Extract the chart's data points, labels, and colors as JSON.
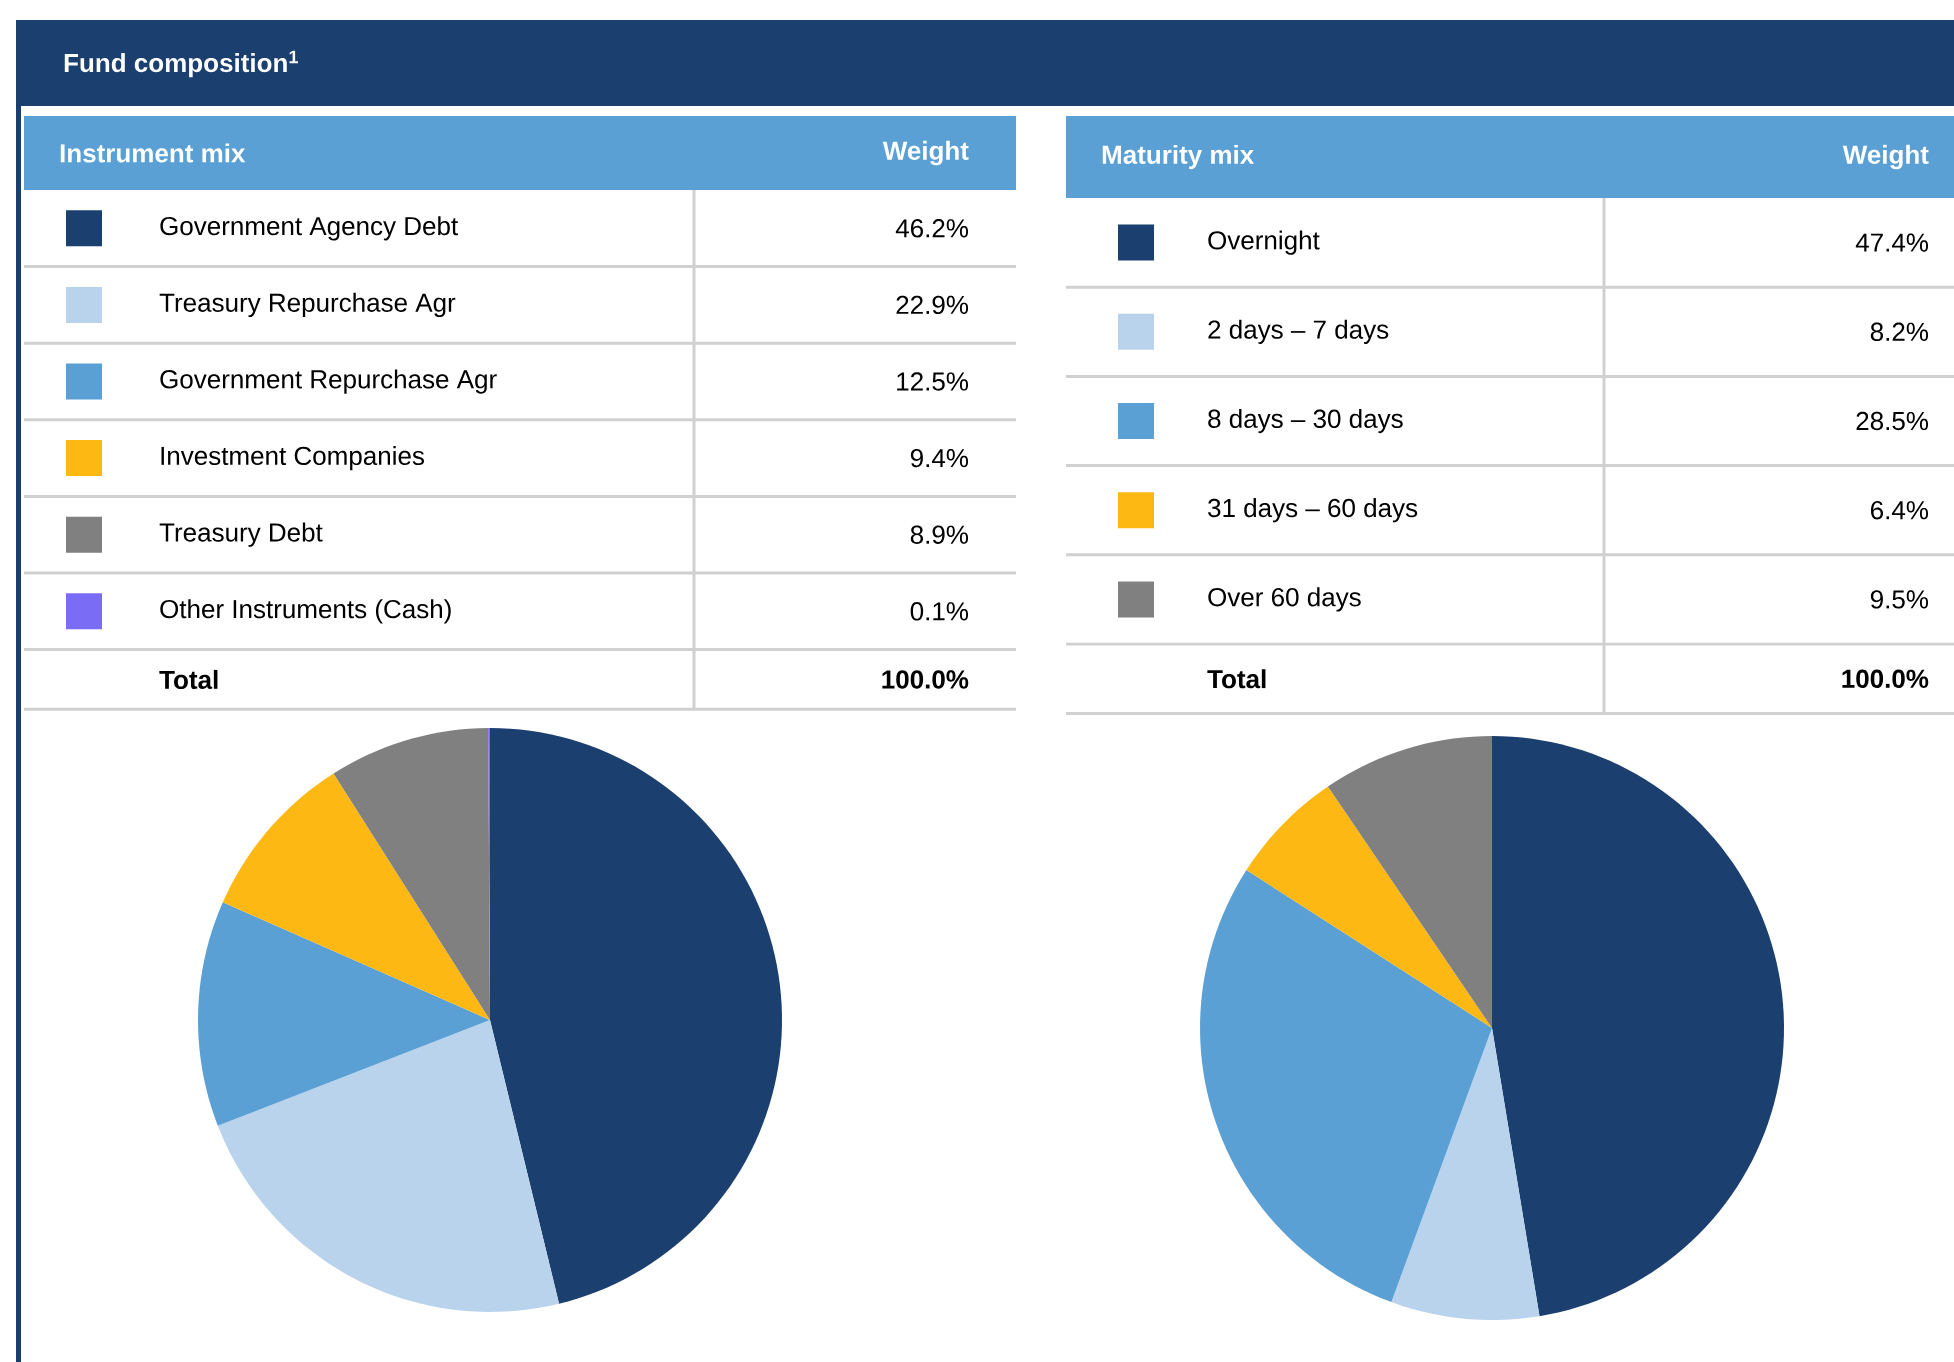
{
  "chart_data": [
    {
      "type": "pie",
      "title": "Fund composition$^{1}$",
      "legend_title": "Instrument mix",
      "legend": "top",
      "categories": [
        "Government Agency Debt",
        "Treasury Repurchase Agr",
        "Government Repurchase Agr",
        "Investment Companies",
        "Treasury Debt",
        "Other Instruments (Cash)"
      ],
      "values": [
        46.2,
        22.9,
        12.5,
        9.4,
        8.9,
        0.1
      ],
      "value_labels": [
        "46.2%",
        "22.9%",
        "12.5%",
        "9.4%",
        "8.9%",
        "0.1%"
      ],
      "colors": [
        "#1b3f6e",
        "#b9d3ec",
        "#5aa0d4",
        "#fdb813",
        "#808080",
        "#7b6cf6"
      ],
      "annotations": [
        "Weight",
        "Total",
        "100.0%"
      ]
    },
    {
      "type": "pie",
      "legend_title": "Maturity mix",
      "legend": "top",
      "categories": [
        "Overnight",
        "2 days – 7 days",
        "8 days – 30 days",
        "31 days – 60 days",
        "Over 60 days"
      ],
      "values": [
        47.4,
        8.2,
        28.5,
        6.4,
        9.5
      ],
      "value_labels": [
        "47.4%",
        "8.2%",
        "28.5%",
        "6.4%",
        "9.5%"
      ],
      "colors": [
        "#1b3f6e",
        "#b9d3ec",
        "#5aa0d4",
        "#fdb813",
        "#808080"
      ],
      "annotations": [
        "Weight",
        "Total",
        "100.0%"
      ]
    }
  ]
}
